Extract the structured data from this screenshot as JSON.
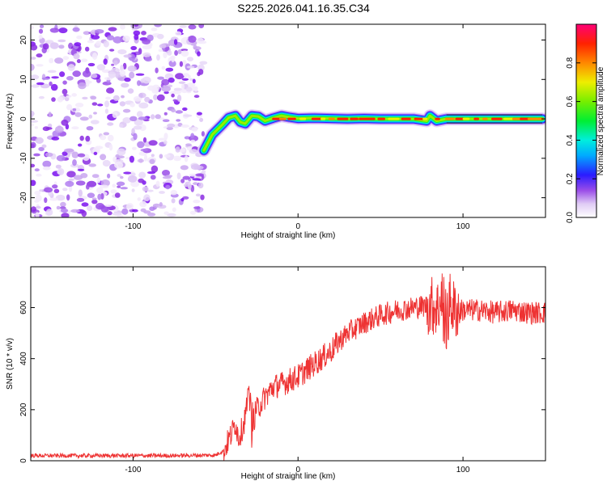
{
  "title": "S225.2026.041.16.35.C34",
  "chart_data": [
    {
      "type": "heatmap",
      "xlabel": "Height of straight line (km)",
      "ylabel": "Frequency (Hz)",
      "xlim": [
        -162,
        150
      ],
      "ylim": [
        -25,
        24
      ],
      "xticks": [
        -100,
        0,
        100
      ],
      "yticks": [
        -20,
        -10,
        0,
        10,
        20
      ],
      "noise_region_x": [
        -162,
        -57
      ],
      "ridge": {
        "x": [
          -57,
          -52,
          -46,
          -42,
          -38,
          -35,
          -32,
          -28,
          -24,
          -20,
          -15,
          -10,
          -5,
          0,
          10,
          20,
          30,
          40,
          50,
          60,
          70,
          78,
          80,
          84,
          90,
          100,
          110,
          120,
          130,
          140,
          148
        ],
        "y": [
          -8,
          -4,
          -1.5,
          0.3,
          0.8,
          -0.8,
          -1.2,
          0.8,
          0.6,
          -0.5,
          0.2,
          0.8,
          0.4,
          0.1,
          0.2,
          0.1,
          0,
          0.1,
          0,
          0,
          0,
          -0.5,
          0.8,
          -0.5,
          0,
          0,
          0,
          0,
          0,
          0,
          0
        ]
      },
      "colorbar": {
        "label": "Normalized spectral amplitude",
        "ticks": [
          "0.0",
          "0.2",
          "0.4",
          "0.6",
          "0.8"
        ],
        "range": [
          0,
          1
        ]
      }
    },
    {
      "type": "line",
      "xlabel": "Height of straight line (km)",
      "ylabel": "SNR (10 * v/v)",
      "xlim": [
        -162,
        150
      ],
      "ylim": [
        0,
        760
      ],
      "xticks": [
        -100,
        0,
        100
      ],
      "yticks": [
        0,
        200,
        400,
        600
      ],
      "line_color": "#ee3333",
      "series": [
        {
          "name": "SNR",
          "x": [
            -162,
            -120,
            -80,
            -50,
            -45,
            -40,
            -38,
            -36,
            -33,
            -30,
            -27,
            -25,
            -20,
            -15,
            -10,
            0,
            10,
            20,
            25,
            30,
            40,
            50,
            60,
            70,
            80,
            85,
            88,
            90,
            92,
            95,
            100,
            110,
            120,
            130,
            140,
            150
          ],
          "values": [
            20,
            20,
            20,
            22,
            40,
            110,
            150,
            90,
            140,
            250,
            170,
            200,
            250,
            290,
            300,
            330,
            380,
            430,
            470,
            500,
            540,
            570,
            590,
            600,
            610,
            600,
            640,
            530,
            620,
            590,
            590,
            590,
            580,
            590,
            580,
            580
          ]
        }
      ]
    }
  ]
}
